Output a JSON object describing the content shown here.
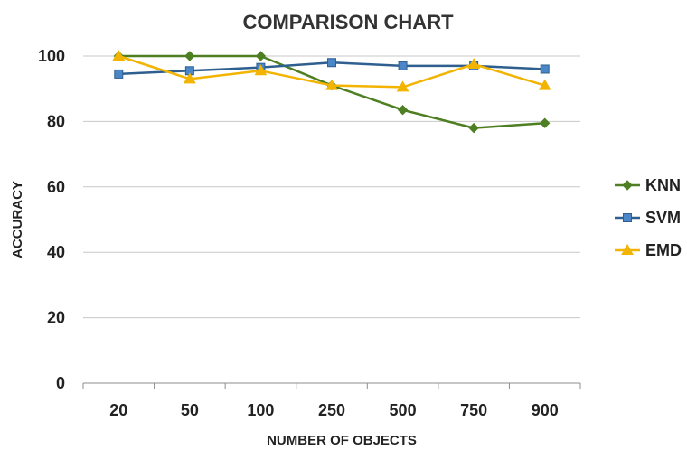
{
  "chart_data": {
    "type": "line",
    "title": "COMPARISON CHART",
    "xlabel": "NUMBER OF OBJECTS",
    "ylabel": "ACCURACY",
    "categories": [
      "20",
      "50",
      "100",
      "250",
      "500",
      "750",
      "900"
    ],
    "ylim": [
      0,
      100
    ],
    "yticks": [
      0,
      20,
      40,
      60,
      80,
      100
    ],
    "grid": true,
    "legend_position": "right",
    "series": [
      {
        "name": "KNN",
        "color": "#4e7f23",
        "marker": "diamond",
        "values": [
          100,
          100,
          100,
          91,
          83.5,
          78,
          79.5
        ]
      },
      {
        "name": "SVM",
        "color": "#2e5f8e",
        "marker": "square",
        "values": [
          94.5,
          95.5,
          96.5,
          98,
          97,
          97,
          96
        ]
      },
      {
        "name": "EMD",
        "color": "#f2b400",
        "marker": "triangle",
        "values": [
          100,
          93,
          95.5,
          91,
          90.5,
          97.5,
          91
        ]
      }
    ]
  }
}
